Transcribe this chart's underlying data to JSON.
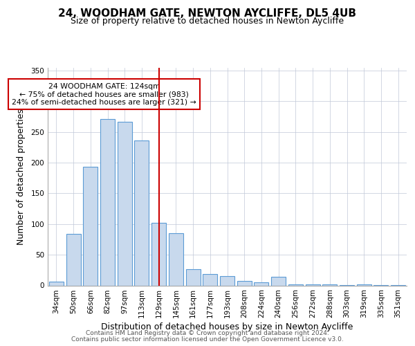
{
  "title": "24, WOODHAM GATE, NEWTON AYCLIFFE, DL5 4UB",
  "subtitle": "Size of property relative to detached houses in Newton Aycliffe",
  "xlabel": "Distribution of detached houses by size in Newton Aycliffe",
  "ylabel": "Number of detached properties",
  "bar_labels": [
    "34sqm",
    "50sqm",
    "66sqm",
    "82sqm",
    "97sqm",
    "113sqm",
    "129sqm",
    "145sqm",
    "161sqm",
    "177sqm",
    "193sqm",
    "208sqm",
    "224sqm",
    "240sqm",
    "256sqm",
    "272sqm",
    "288sqm",
    "303sqm",
    "319sqm",
    "335sqm",
    "351sqm"
  ],
  "bar_values": [
    6,
    84,
    193,
    271,
    266,
    236,
    102,
    85,
    27,
    19,
    15,
    7,
    5,
    14,
    2,
    2,
    2,
    1,
    2,
    1,
    1
  ],
  "bar_color": "#c8d9ed",
  "bar_edge_color": "#5b9bd5",
  "vline_x": 6,
  "vline_color": "#cc0000",
  "annotation_text": "24 WOODHAM GATE: 124sqm\n← 75% of detached houses are smaller (983)\n24% of semi-detached houses are larger (321) →",
  "annotation_box_color": "#ffffff",
  "annotation_box_edge_color": "#cc0000",
  "ylim": [
    0,
    355
  ],
  "yticks": [
    0,
    50,
    100,
    150,
    200,
    250,
    300,
    350
  ],
  "footer_line1": "Contains HM Land Registry data © Crown copyright and database right 2024.",
  "footer_line2": "Contains public sector information licensed under the Open Government Licence v3.0.",
  "background_color": "#ffffff",
  "grid_color": "#c0c8d8",
  "title_fontsize": 11,
  "subtitle_fontsize": 9,
  "xlabel_fontsize": 9,
  "ylabel_fontsize": 9,
  "tick_fontsize": 7.5,
  "footer_fontsize": 6.5
}
